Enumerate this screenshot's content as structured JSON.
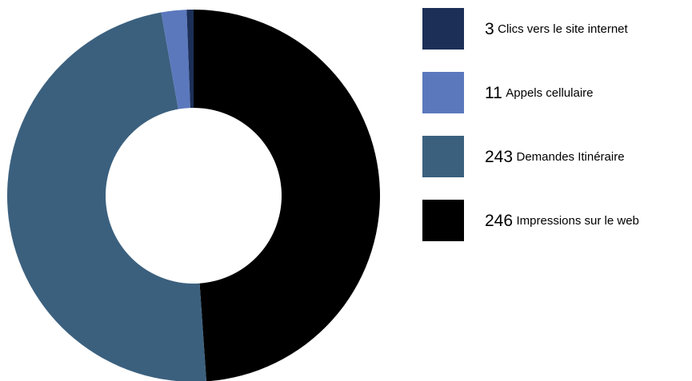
{
  "chart_data": {
    "type": "pie",
    "donut": true,
    "categories": [
      "Clics vers le site internet",
      "Appels cellulaire",
      "Demandes Itinéraire",
      "Impressions sur le web"
    ],
    "values": [
      3,
      11,
      243,
      246
    ],
    "colors": [
      "#1c2f57",
      "#5b78bd",
      "#3b607e",
      "#000000"
    ],
    "legend": "right"
  }
}
